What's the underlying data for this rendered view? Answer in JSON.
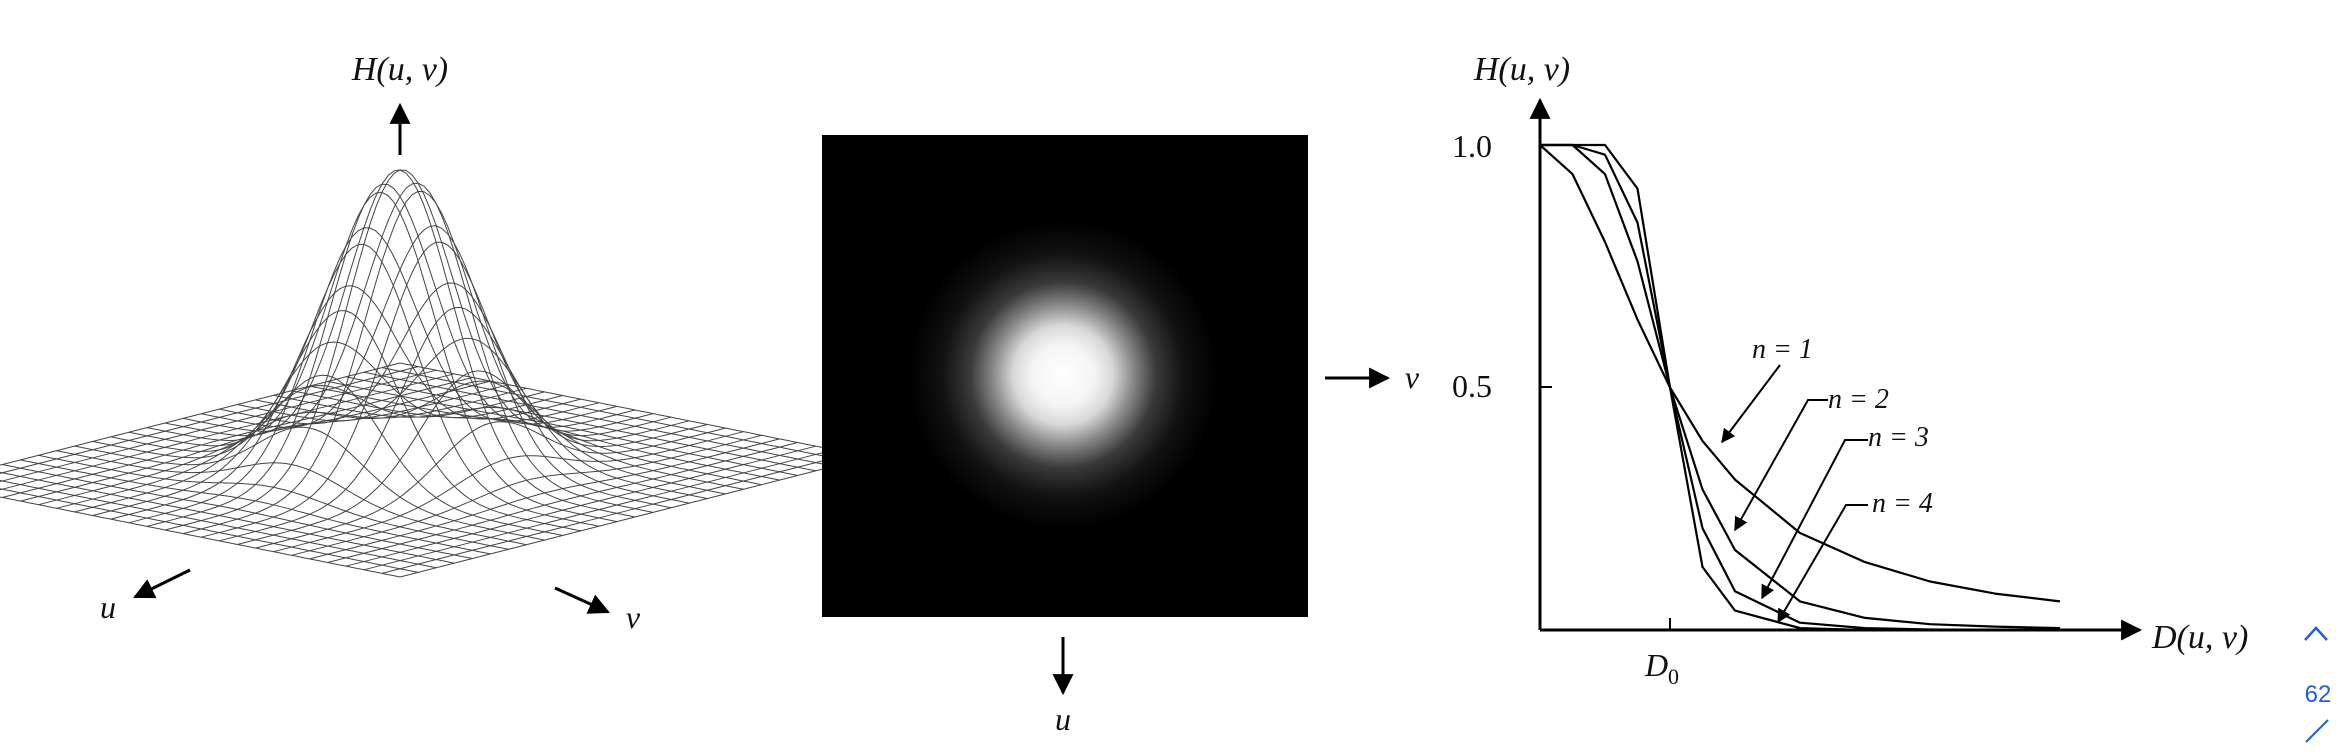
{
  "panel_surface": {
    "z_label": "H(u, v)",
    "u_label": "u",
    "v_label": "v"
  },
  "panel_image": {
    "right_label": "v",
    "bottom_label": "u"
  },
  "chart_data": {
    "type": "line",
    "title": "",
    "ylabel": "H(u, v)",
    "xlabel": "D(u, v)",
    "x_tick_labels": [
      "D0"
    ],
    "y_tick_labels": [
      "1.0",
      "0.5"
    ],
    "xlim": [
      0,
      4
    ],
    "ylim": [
      0,
      1
    ],
    "series": [
      {
        "name": "n = 1",
        "x": [
          0,
          0.25,
          0.5,
          0.75,
          1,
          1.25,
          1.5,
          2,
          2.5,
          3,
          3.5,
          4
        ],
        "values": [
          1.0,
          0.94,
          0.8,
          0.64,
          0.5,
          0.39,
          0.31,
          0.2,
          0.14,
          0.1,
          0.075,
          0.059
        ]
      },
      {
        "name": "n = 2",
        "x": [
          0,
          0.25,
          0.5,
          0.75,
          1,
          1.25,
          1.5,
          2,
          2.5,
          3,
          3.5,
          4
        ],
        "values": [
          1.0,
          1.0,
          0.94,
          0.76,
          0.5,
          0.29,
          0.165,
          0.059,
          0.025,
          0.012,
          0.007,
          0.004
        ]
      },
      {
        "name": "n = 3",
        "x": [
          0,
          0.25,
          0.5,
          0.75,
          1,
          1.25,
          1.5,
          2,
          2.5,
          3,
          3.5,
          4
        ],
        "values": [
          1.0,
          1.0,
          0.98,
          0.84,
          0.5,
          0.21,
          0.08,
          0.015,
          0.004,
          0.001,
          0.0,
          0.0
        ]
      },
      {
        "name": "n = 4",
        "x": [
          0,
          0.25,
          0.5,
          0.75,
          1,
          1.25,
          1.5,
          2,
          2.5,
          3,
          3.5,
          4
        ],
        "values": [
          1.0,
          1.0,
          1.0,
          0.91,
          0.5,
          0.13,
          0.04,
          0.004,
          0.0,
          0.0,
          0.0,
          0.0
        ]
      }
    ],
    "grid": false,
    "legend": "none"
  },
  "nav": {
    "page_number": "62"
  }
}
